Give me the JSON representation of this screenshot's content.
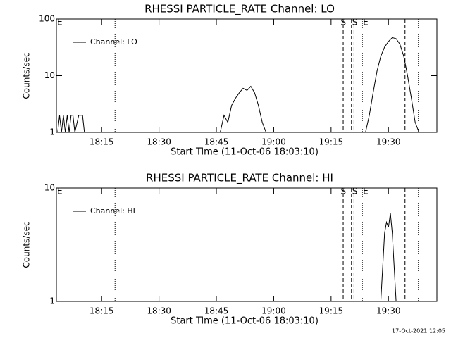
{
  "chart_data": [
    {
      "type": "line",
      "title": "RHESSI PARTICLE_RATE Channel: LO",
      "xlabel": "Start Time (11-Oct-06 18:03:10)",
      "ylabel": "Counts/sec",
      "log_y": true,
      "ylim": [
        1,
        100
      ],
      "yticks": [
        1,
        10,
        100
      ],
      "xlim": [
        "18:03:10",
        "19:42:40"
      ],
      "xticks": [
        "18:15",
        "18:30",
        "18:45",
        "19:00",
        "19:15",
        "19:30"
      ],
      "x": [
        "18:03:30",
        "18:04:00",
        "18:04:30",
        "18:05:00",
        "18:05:30",
        "18:06:00",
        "18:06:30",
        "18:07:00",
        "18:07:30",
        "18:08:00",
        "18:09:00",
        "18:10:00",
        "18:10:30",
        "18:20:00",
        "18:46:00",
        "18:47:00",
        "18:48:00",
        "18:49:00",
        "18:50:00",
        "18:51:00",
        "18:52:00",
        "18:53:00",
        "18:54:00",
        "18:55:00",
        "18:56:00",
        "18:57:00",
        "18:58:00",
        "19:10:00",
        "19:24:00",
        "19:25:00",
        "19:26:00",
        "19:27:00",
        "19:28:00",
        "19:29:00",
        "19:30:00",
        "19:31:00",
        "19:32:00",
        "19:33:00",
        "19:34:00",
        "19:35:00",
        "19:36:00",
        "19:37:00",
        "19:38:00"
      ],
      "series": [
        {
          "name": "Channel: LO",
          "color": "#000000",
          "values": [
            1,
            2,
            1,
            2,
            1,
            2,
            1,
            2,
            2,
            1,
            2,
            2,
            1,
            null,
            1,
            2,
            1.5,
            3,
            4,
            5,
            6,
            5.5,
            6.5,
            5,
            3,
            1.5,
            1,
            null,
            1,
            2,
            5,
            12,
            22,
            32,
            40,
            47,
            45,
            36,
            22,
            10,
            4,
            1.5,
            1
          ]
        }
      ],
      "markers": [
        {
          "x": "18:18:30",
          "style": "dotted"
        },
        {
          "x": "19:17:20",
          "style": "dashed",
          "label": "S"
        },
        {
          "x": "19:18:10",
          "style": "dashed"
        },
        {
          "x": "19:20:20",
          "style": "dashed",
          "label": "S"
        },
        {
          "x": "19:21:00",
          "style": "dashed"
        },
        {
          "x": "19:23:10",
          "style": "dotted",
          "label": "E"
        },
        {
          "x": "19:34:20",
          "style": "dashed"
        },
        {
          "x": "19:37:50",
          "style": "dotted"
        }
      ],
      "annotations": [
        {
          "text": "E",
          "x": "18:03:10"
        }
      ]
    },
    {
      "type": "line",
      "title": "RHESSI PARTICLE_RATE Channel: HI",
      "xlabel": "Start Time (11-Oct-06 18:03:10)",
      "ylabel": "Counts/sec",
      "log_y": true,
      "ylim": [
        1,
        10
      ],
      "yticks": [
        1,
        10
      ],
      "xlim": [
        "18:03:10",
        "19:42:40"
      ],
      "xticks": [
        "18:15",
        "18:30",
        "18:45",
        "19:00",
        "19:15",
        "19:30"
      ],
      "x": [
        "19:28:00",
        "19:29:00",
        "19:29:30",
        "19:30:00",
        "19:30:30",
        "19:31:00",
        "19:31:30",
        "19:32:00"
      ],
      "series": [
        {
          "name": "Channel: HI",
          "color": "#000000",
          "values": [
            1,
            4,
            5,
            4.5,
            6,
            4,
            2,
            1
          ]
        }
      ],
      "markers": [
        {
          "x": "18:18:30",
          "style": "dotted"
        },
        {
          "x": "19:17:20",
          "style": "dashed",
          "label": "S"
        },
        {
          "x": "19:18:10",
          "style": "dashed"
        },
        {
          "x": "19:20:20",
          "style": "dashed",
          "label": "S"
        },
        {
          "x": "19:21:00",
          "style": "dashed"
        },
        {
          "x": "19:23:10",
          "style": "dotted",
          "label": "E"
        },
        {
          "x": "19:34:20",
          "style": "dashed"
        },
        {
          "x": "19:37:50",
          "style": "dotted"
        }
      ],
      "annotations": [
        {
          "text": "E",
          "x": "18:03:10"
        }
      ]
    }
  ],
  "footer": "17-Oct-2021 12:05"
}
